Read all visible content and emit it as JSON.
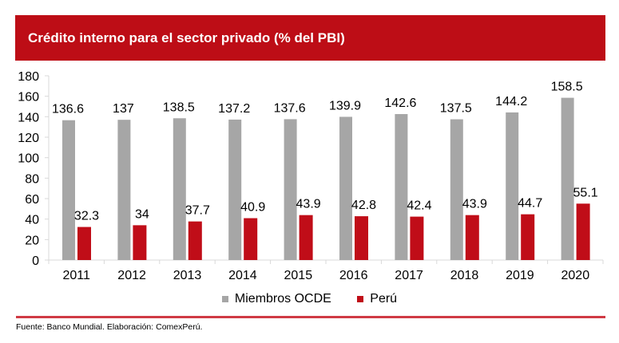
{
  "header": {
    "title": "Crédito interno para el sector privado (% del PBI)"
  },
  "colors": {
    "header_bg": "#bd0d16",
    "ocde": "#a6a6a6",
    "peru": "#c00d18",
    "rule": "#d03a44"
  },
  "chart_data": {
    "type": "bar",
    "title": "Crédito interno para el sector privado (% del PBI)",
    "xlabel": "",
    "ylabel": "",
    "categories": [
      "2011",
      "2012",
      "2013",
      "2014",
      "2015",
      "2016",
      "2017",
      "2018",
      "2019",
      "2020"
    ],
    "series": [
      {
        "name": "Miembros OCDE",
        "color": "#a6a6a6",
        "values": [
          136.6,
          137,
          138.5,
          137.2,
          137.6,
          139.9,
          142.6,
          137.5,
          144.2,
          158.5
        ],
        "labels": [
          "136.6",
          "137",
          "138.5",
          "137.2",
          "137.6",
          "139.9",
          "142.6",
          "137.5",
          "144.2",
          "158.5"
        ]
      },
      {
        "name": "Perú",
        "color": "#c00d18",
        "values": [
          32.3,
          34,
          37.7,
          40.9,
          43.9,
          42.8,
          42.4,
          43.9,
          44.7,
          55.1
        ],
        "labels": [
          "32.3",
          "34",
          "37.7",
          "40.9",
          "43.9",
          "42.8",
          "42.4",
          "43.9",
          "44.7",
          "55.1"
        ]
      }
    ],
    "ylim": [
      0,
      180
    ],
    "yticks": [
      "0",
      "20",
      "40",
      "60",
      "80",
      "100",
      "120",
      "140",
      "160",
      "180"
    ],
    "grid": false,
    "legend": "bottom-center"
  },
  "legend": {
    "items": [
      {
        "label": "Miembros OCDE"
      },
      {
        "label": "Perú"
      }
    ]
  },
  "footer": {
    "source": "Fuente: Banco Mundial. Elaboración: ComexPerú."
  }
}
